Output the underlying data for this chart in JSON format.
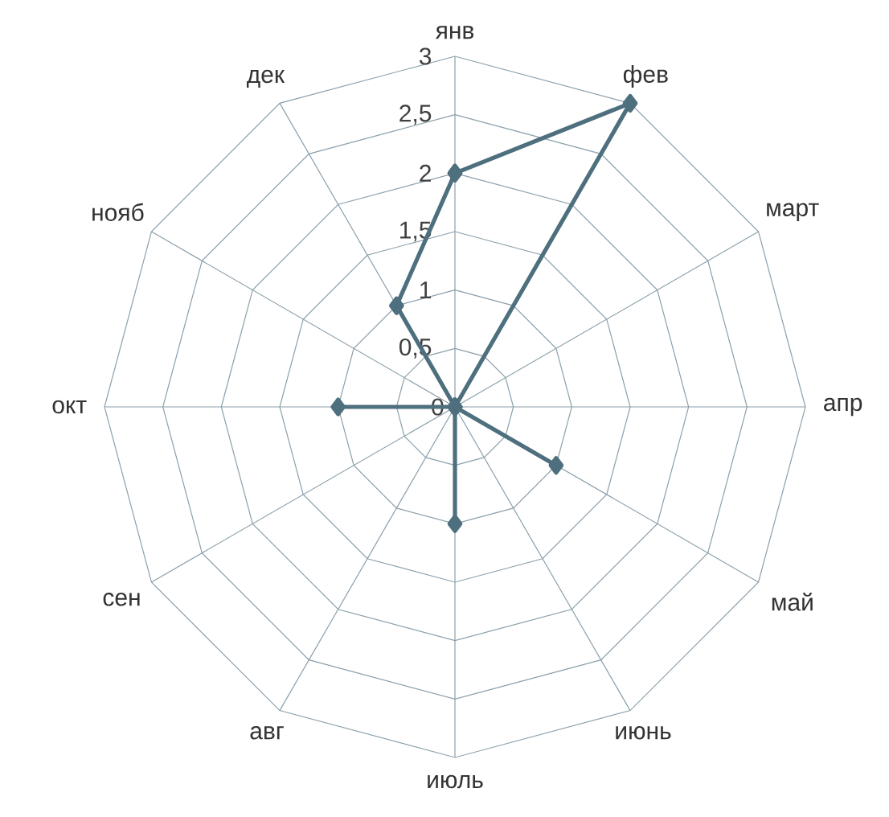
{
  "chart_data": {
    "type": "radar",
    "categories": [
      "янв",
      "фев",
      "март",
      "апр",
      "май",
      "июнь",
      "июль",
      "авг",
      "сен",
      "окт",
      "нояб",
      "дек"
    ],
    "series": [
      {
        "color": "#4e6f7e",
        "values": [
          2,
          3,
          0,
          0,
          1,
          0,
          1,
          0,
          0,
          1,
          0,
          1
        ]
      }
    ],
    "ylim": [
      0,
      3
    ],
    "yticks": [
      {
        "value": 0,
        "label": "0"
      },
      {
        "value": 0.5,
        "label": "0,5"
      },
      1,
      {
        "value": 1.5,
        "label": "1,5"
      },
      2,
      {
        "value": 2.5,
        "label": "2,5"
      },
      3
    ],
    "grid": true,
    "marker": "diamond",
    "line_style": "solid"
  }
}
